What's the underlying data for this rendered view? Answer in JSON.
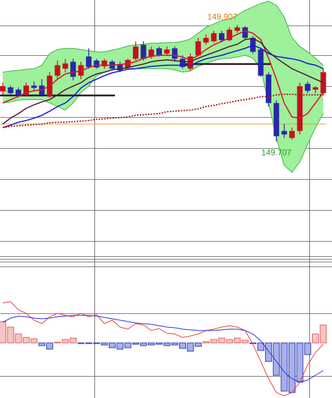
{
  "chart_data": [
    {
      "type": "candlestick",
      "ylim": [
        149.51,
        149.95
      ],
      "up_color": "#c8101e",
      "down_color": "#2828a8",
      "open": [
        149.793,
        149.8,
        149.796,
        149.788,
        149.803,
        149.803,
        149.784,
        149.82,
        149.832,
        149.844,
        149.82,
        149.853,
        149.846,
        149.836,
        149.844,
        149.84,
        149.834,
        149.849,
        149.873,
        149.853,
        149.867,
        149.858,
        149.867,
        149.849,
        149.832,
        149.855,
        149.877,
        149.879,
        149.893,
        149.881,
        149.897,
        149.903,
        149.885,
        149.865,
        149.822,
        149.773,
        149.725,
        149.713,
        149.725,
        149.806,
        149.796,
        149.79
      ],
      "high": [
        149.808,
        149.803,
        149.8,
        149.808,
        149.81,
        149.814,
        149.826,
        149.846,
        149.849,
        149.849,
        149.844,
        149.867,
        149.849,
        149.849,
        149.847,
        149.844,
        149.849,
        149.879,
        149.879,
        149.87,
        149.87,
        149.87,
        149.87,
        149.855,
        149.858,
        149.885,
        149.891,
        149.897,
        149.897,
        149.903,
        149.907,
        149.905,
        149.888,
        149.867,
        149.826,
        149.778,
        149.737,
        149.731,
        149.808,
        149.81,
        149.802,
        149.832
      ],
      "low": [
        149.787,
        149.788,
        149.784,
        149.784,
        149.794,
        149.784,
        149.782,
        149.814,
        149.826,
        149.812,
        149.814,
        149.832,
        149.832,
        149.832,
        149.829,
        149.826,
        149.832,
        149.846,
        149.846,
        149.849,
        149.853,
        149.855,
        149.844,
        149.832,
        149.829,
        149.853,
        149.873,
        149.877,
        149.877,
        149.879,
        149.893,
        149.881,
        149.858,
        149.818,
        149.767,
        149.707,
        149.713,
        149.71,
        149.719,
        149.79,
        149.79,
        149.787
      ],
      "close": [
        149.802,
        149.79,
        149.787,
        149.803,
        149.799,
        149.787,
        149.82,
        149.838,
        149.841,
        149.818,
        149.838,
        149.835,
        149.834,
        149.846,
        149.832,
        149.829,
        149.847,
        149.87,
        149.849,
        149.865,
        149.855,
        149.865,
        149.849,
        149.835,
        149.853,
        149.879,
        149.885,
        149.893,
        149.881,
        149.899,
        149.903,
        149.885,
        149.861,
        149.82,
        149.773,
        149.716,
        149.719,
        149.725,
        149.802,
        149.794,
        149.8,
        149.826
      ],
      "band_color": "#3cb043",
      "band_fill": "#9ef09a",
      "band_upper": [
        149.826,
        149.828,
        149.829,
        149.831,
        149.832,
        149.838,
        149.858,
        149.865,
        149.867,
        149.867,
        149.865,
        149.863,
        149.861,
        149.861,
        149.864,
        149.867,
        149.871,
        149.873,
        149.874,
        149.876,
        149.876,
        149.877,
        149.877,
        149.879,
        149.883,
        149.893,
        149.903,
        149.909,
        149.915,
        149.917,
        149.924,
        149.932,
        149.938,
        149.944,
        149.948,
        149.941,
        149.921,
        149.885,
        149.87,
        149.861,
        149.85,
        149.838
      ],
      "band_lower": [
        149.773,
        149.775,
        149.778,
        149.779,
        149.779,
        149.779,
        149.773,
        149.767,
        149.761,
        149.773,
        149.791,
        149.802,
        149.82,
        149.826,
        149.83,
        149.832,
        149.832,
        149.832,
        149.832,
        149.832,
        149.832,
        149.832,
        149.83,
        149.826,
        149.828,
        149.836,
        149.841,
        149.846,
        149.849,
        149.85,
        149.852,
        149.855,
        149.85,
        149.832,
        149.773,
        149.713,
        149.666,
        149.654,
        149.672,
        149.702,
        149.731,
        149.755
      ],
      "lines": [
        {
          "color": "#e01028",
          "dashed": false,
          "values": [
            149.773,
            149.779,
            149.784,
            149.791,
            149.794,
            149.796,
            149.802,
            149.814,
            149.823,
            149.826,
            149.828,
            149.834,
            149.838,
            149.838,
            149.838,
            149.839,
            149.841,
            149.844,
            149.85,
            149.853,
            149.855,
            149.855,
            149.855,
            149.852,
            149.847,
            149.855,
            149.865,
            149.873,
            149.879,
            149.885,
            149.891,
            149.897,
            149.893,
            149.882,
            149.85,
            149.814,
            149.773,
            149.749,
            149.747,
            149.755,
            149.773,
            149.791
          ]
        },
        {
          "color": "#1818d8",
          "dashed": false,
          "values": [
            149.731,
            149.735,
            149.74,
            149.743,
            149.747,
            149.752,
            149.759,
            149.767,
            149.773,
            149.784,
            149.799,
            149.808,
            149.814,
            149.82,
            149.825,
            149.828,
            149.831,
            149.832,
            149.834,
            149.836,
            149.837,
            149.838,
            149.838,
            149.838,
            149.837,
            149.844,
            149.849,
            149.852,
            149.855,
            149.859,
            149.863,
            149.867,
            149.872,
            149.867,
            149.858,
            149.853,
            149.851,
            149.849,
            149.846,
            149.841,
            149.838,
            149.832
          ]
        },
        {
          "color": "#501838",
          "dashed": false,
          "values": [
            149.737,
            149.747,
            149.755,
            149.764,
            149.77,
            149.775,
            149.779,
            149.787,
            149.796,
            149.802,
            149.808,
            149.817,
            149.823,
            149.826,
            149.83,
            149.832,
            149.834,
            149.837,
            149.84,
            149.844,
            149.846,
            149.847,
            149.846,
            149.844,
            149.844,
            149.85,
            149.855,
            149.86,
            149.865,
            149.87,
            149.874,
            149.882,
            149.884,
            149.877,
            149.861,
            149.85,
            149.841,
            149.832,
            149.826,
            149.82,
            149.814,
            149.808
          ]
        },
        {
          "color": "#a01818",
          "dashed": true,
          "values": [
            149.731,
            149.733,
            149.734,
            149.735,
            149.736,
            149.737,
            149.739,
            149.74,
            149.74,
            149.741,
            149.742,
            149.743,
            149.745,
            149.746,
            149.747,
            149.748,
            149.749,
            149.752,
            149.753,
            149.754,
            149.755,
            149.758,
            149.759,
            149.76,
            149.761,
            149.763,
            149.767,
            149.769,
            149.772,
            149.774,
            149.777,
            149.779,
            149.781,
            149.784,
            149.784,
            149.787,
            149.788,
            149.788,
            149.787,
            149.787,
            149.787,
            149.787
          ]
        }
      ],
      "levels": [
        {
          "value": 149.786,
          "start": 0,
          "end": 14,
          "color": "#301020",
          "width": 2.5
        },
        {
          "value": 149.84,
          "start": 23,
          "end": 34,
          "color": "#301020",
          "width": 2.5
        },
        {
          "value": 149.737,
          "start": 0,
          "end": 41,
          "color": "#e8a030",
          "width": 1
        }
      ],
      "annotations": [
        {
          "text": "149.907",
          "color": "#e07818"
        },
        {
          "text": "149.707",
          "color": "#20a020"
        }
      ]
    },
    {
      "type": "macd",
      "ylim": [
        -0.08,
        0.113
      ],
      "hist_up_fill": "#f8c4c4",
      "hist_up_stroke": "#e06060",
      "hist_down_fill": "#a8b0ec",
      "hist_down_stroke": "#3040b0",
      "histogram": [
        0.031,
        0.023,
        0.013,
        0.008,
        0.006,
        -0.004,
        -0.009,
        0.001,
        0.005,
        0.007,
        -0.001,
        -0.001,
        -0.001,
        -0.003,
        -0.007,
        -0.009,
        -0.007,
        -0.002,
        -0.004,
        -0.003,
        -0.002,
        -0.004,
        -0.003,
        -0.008,
        -0.012,
        -0.005,
        0.002,
        0.005,
        0.007,
        0.005,
        0.007,
        0.004,
        -0.001,
        -0.011,
        -0.027,
        -0.047,
        -0.07,
        -0.072,
        -0.057,
        -0.017,
        0.013,
        0.026
      ],
      "lines": [
        {
          "color": "#f03838",
          "values": [
            0.058,
            0.06,
            0.048,
            0.043,
            0.033,
            0.028,
            0.038,
            0.043,
            0.04,
            0.038,
            0.043,
            0.038,
            0.041,
            0.028,
            0.033,
            0.023,
            0.02,
            0.028,
            0.026,
            0.018,
            0.021,
            0.014,
            0.013,
            0.008,
            0.01,
            0.013,
            0.018,
            0.02,
            0.023,
            0.025,
            0.023,
            0.018,
            -0.002,
            -0.027,
            -0.052,
            -0.072,
            -0.077,
            -0.072,
            -0.057,
            -0.032,
            -0.014,
            -0.002
          ]
        },
        {
          "color": "#2828e0",
          "values": [
            0.03,
            0.036,
            0.039,
            0.038,
            0.036,
            0.035,
            0.036,
            0.038,
            0.039,
            0.04,
            0.04,
            0.04,
            0.039,
            0.037,
            0.035,
            0.033,
            0.031,
            0.029,
            0.028,
            0.027,
            0.025,
            0.023,
            0.022,
            0.02,
            0.019,
            0.018,
            0.018,
            0.018,
            0.019,
            0.02,
            0.02,
            0.018,
            0.013,
            0.003,
            -0.012,
            -0.027,
            -0.042,
            -0.052,
            -0.057,
            -0.054,
            -0.047,
            -0.04
          ]
        }
      ]
    }
  ]
}
